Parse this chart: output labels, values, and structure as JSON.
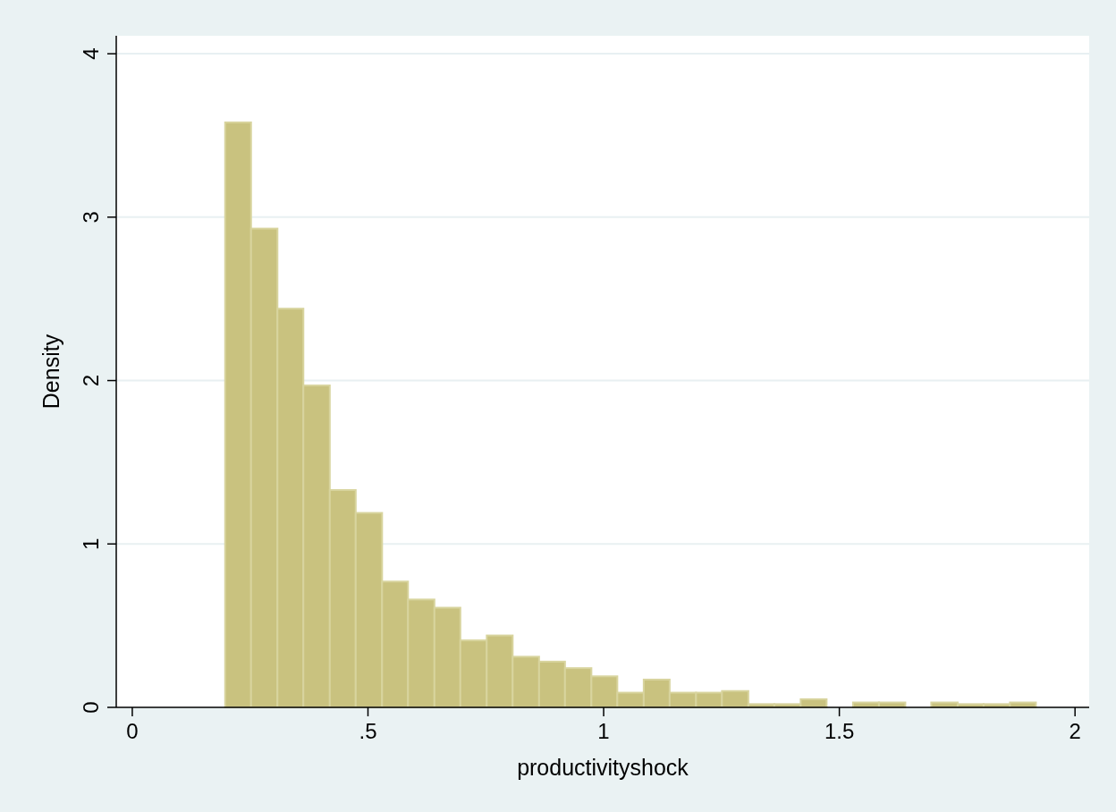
{
  "chart_data": {
    "type": "histogram",
    "xlabel": "productivityshock",
    "ylabel": "Density",
    "bins": [
      0.197,
      0.252,
      0.308,
      0.363,
      0.419,
      0.474,
      0.53,
      0.585,
      0.641,
      0.696,
      0.752,
      0.807,
      0.863,
      0.918,
      0.974,
      1.029,
      1.085,
      1.14,
      1.196,
      1.251,
      1.307,
      1.362,
      1.418,
      1.473,
      1.529,
      1.584,
      1.64,
      1.695,
      1.751,
      1.806,
      1.862,
      1.917
    ],
    "values": [
      3.58,
      2.93,
      2.44,
      1.97,
      1.33,
      1.19,
      0.77,
      0.66,
      0.61,
      0.41,
      0.44,
      0.31,
      0.28,
      0.24,
      0.19,
      0.09,
      0.17,
      0.09,
      0.09,
      0.1,
      0.02,
      0.02,
      0.05,
      0,
      0.03,
      0.03,
      0,
      0.03,
      0.02,
      0.02,
      0.03
    ],
    "color": "#c9c27f",
    "xlim": [
      -0.034,
      2.03
    ],
    "xticks": [
      0,
      {
        "value": 0.5,
        "label": ".5"
      },
      1,
      1.5,
      2
    ],
    "ylim": [
      0,
      4.11
    ],
    "yticks": [
      0,
      1,
      2,
      3,
      4
    ],
    "grid": "y"
  }
}
